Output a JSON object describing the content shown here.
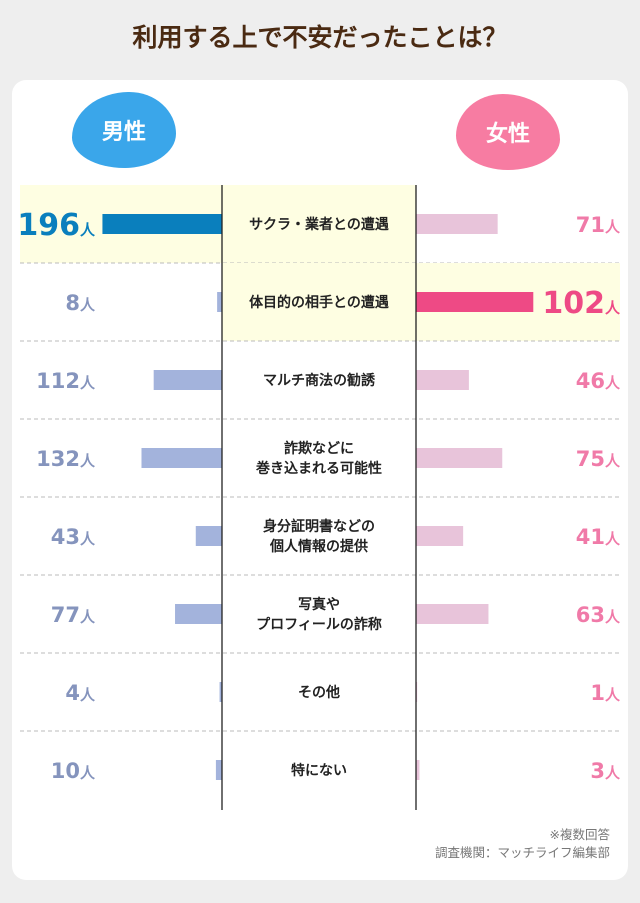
{
  "chart_data": {
    "type": "bar",
    "title": "利用する上で不安だったことは？",
    "unit": "人",
    "categories": [
      "サクラ・業者との遭遇",
      "体目的の相手との遭遇",
      "マルチ商法の勧誘",
      "詐欺などに\n巻き込まれる可能性",
      "身分証明書などの\n個人情報の提供",
      "写真や\nプロフィールの詐称",
      "その他",
      "特にない"
    ],
    "series": [
      {
        "name": "男性",
        "values": [
          196,
          8,
          112,
          132,
          43,
          77,
          4,
          10
        ],
        "highlight_index": 0
      },
      {
        "name": "女性",
        "values": [
          71,
          102,
          46,
          75,
          41,
          63,
          1,
          3
        ],
        "highlight_index": 1
      }
    ],
    "grid": false,
    "colors": {
      "male_highlight": "#0a7fbd",
      "male": "#a3b3dc",
      "male_label": "#8594bd",
      "female_highlight": "#ee4a85",
      "female": "#e8c4da",
      "female_label": "#f07aa8",
      "row_highlight": "#fefee2"
    }
  },
  "notes": {
    "multiple": "※複数回答",
    "source": "調査機関：マッチライフ編集部"
  }
}
